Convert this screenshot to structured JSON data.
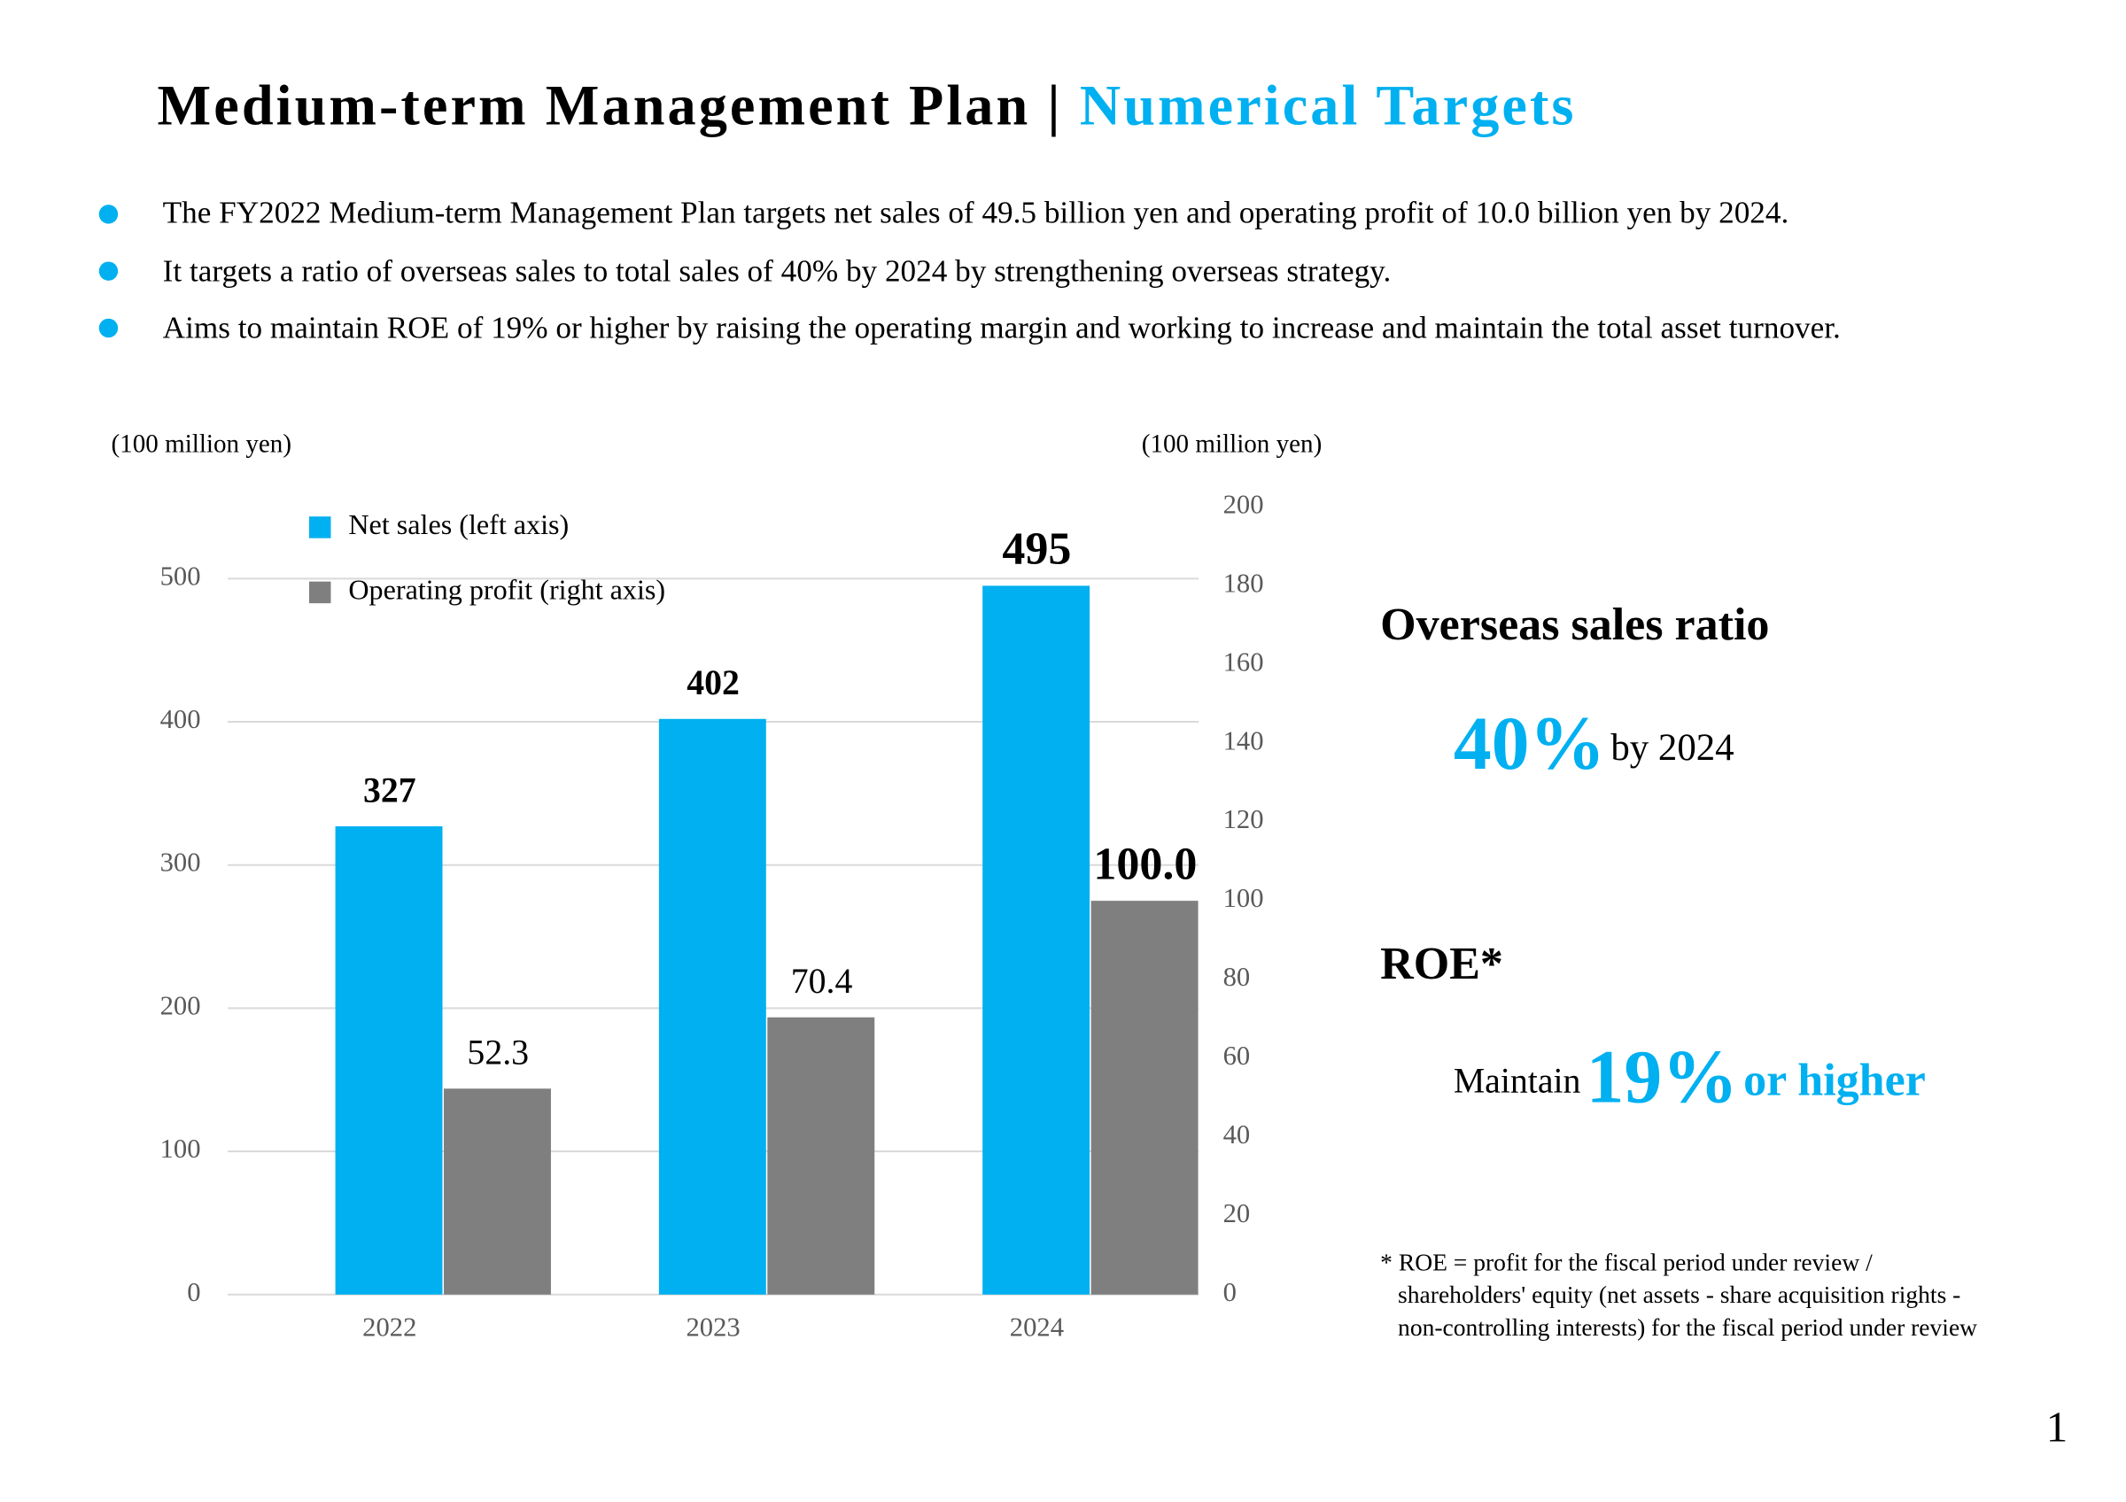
{
  "header": {
    "title": "Medium-term Management Plan |",
    "title_accent": "Numerical Targets"
  },
  "bullets": [
    "The FY2022 Medium-term Management Plan targets net sales of 49.5 billion yen and operating profit of 10.0 billion yen by 2024.",
    "It targets a ratio of overseas sales to total sales of 40% by 2024 by strengthening overseas strategy.",
    "Aims to maintain ROE of 19% or higher by raising the operating margin and working to increase and maintain the total asset turnover."
  ],
  "chart_data": {
    "type": "bar",
    "ylabel": "(100 million yen)",
    "y2label": "(100 million yen)",
    "categories": [
      "2022",
      "2023",
      "2024"
    ],
    "series": [
      {
        "name": "Net sales (left axis)",
        "color": "#00b0f0",
        "values": [
          327,
          402,
          495
        ]
      },
      {
        "name": "Operating profit (right axis)",
        "color": "#7f7f7f",
        "axis": "y2",
        "values": [
          52.3,
          70.4,
          100
        ],
        "value_labels": [
          "52.3",
          "70.4",
          "100.0"
        ]
      }
    ],
    "ylim": [
      0,
      550
    ],
    "yticks": [
      0,
      100,
      200,
      300,
      400,
      500
    ],
    "y2lim": [
      0,
      200
    ],
    "y2ticks": [
      0,
      20,
      40,
      60,
      80,
      100,
      120,
      140,
      160,
      180,
      200
    ],
    "grid": true,
    "legend": "top-left"
  },
  "targets": {
    "overseas": {
      "label": "Overseas sales ratio",
      "value": "40%",
      "suffix": "by 2024"
    },
    "roe": {
      "label": "ROE*",
      "prefix": "Maintain",
      "value": "19%",
      "suffix": "or higher"
    },
    "footnote": [
      "* ROE = profit for the fiscal period under review /",
      "shareholders' equity (net assets - share acquisition rights -",
      "non-controlling interests) for the fiscal period under review"
    ]
  },
  "page_number": "1"
}
